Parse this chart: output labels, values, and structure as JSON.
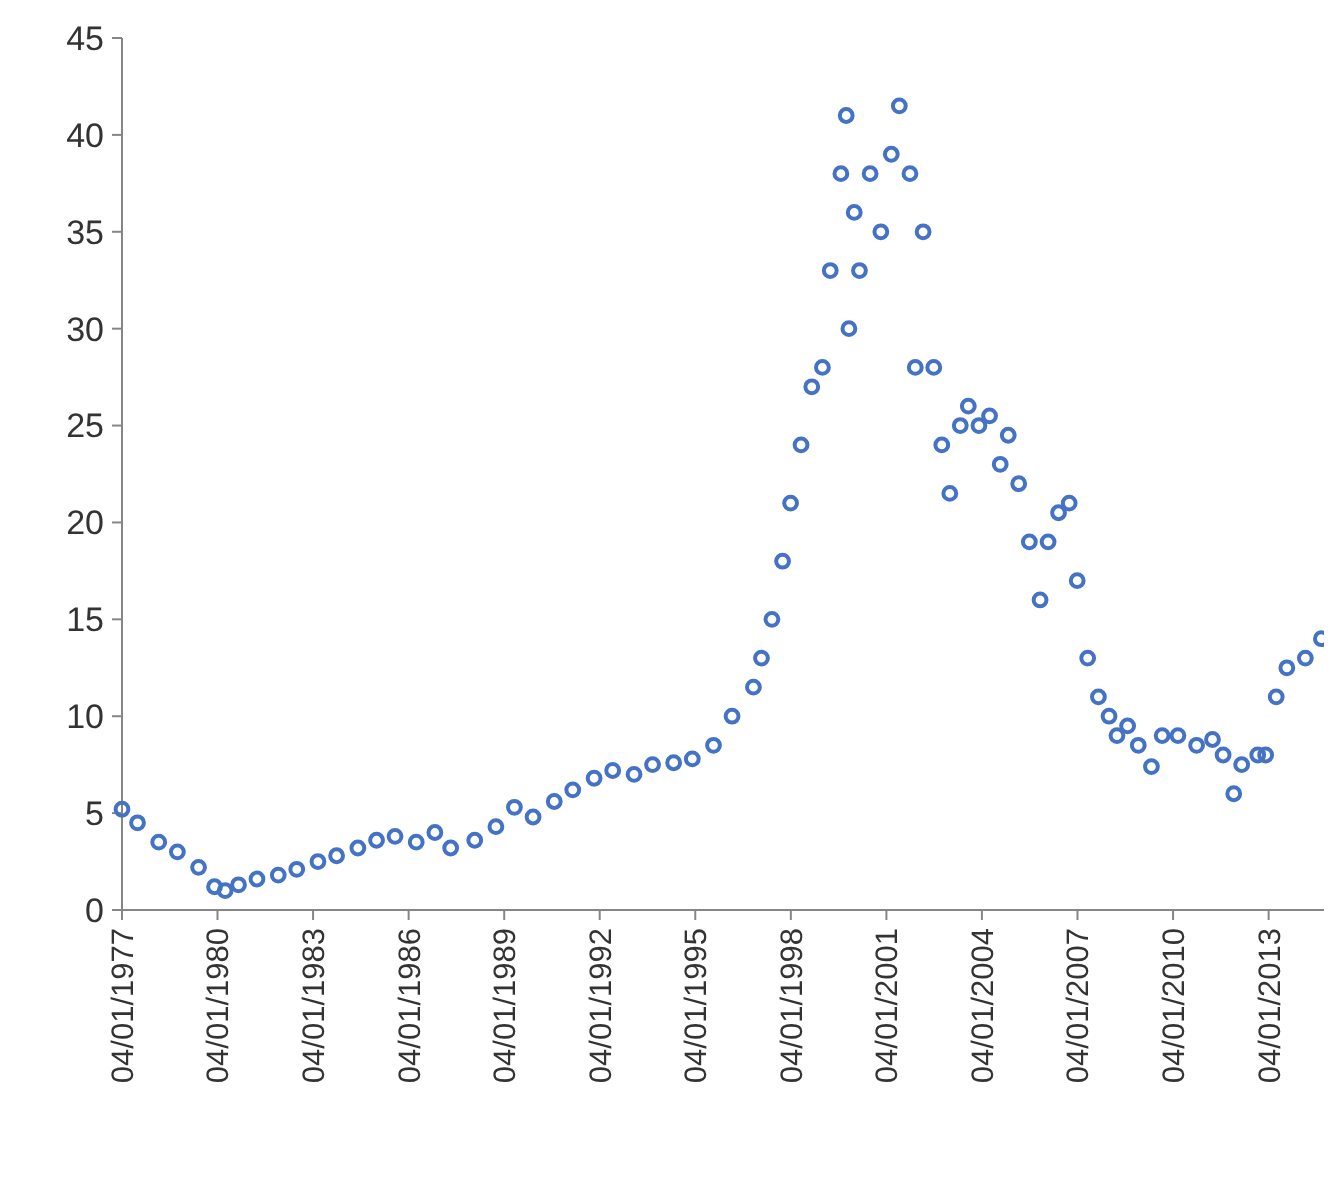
{
  "chart_data": {
    "type": "scatter",
    "marker": "circle",
    "grid": false,
    "xlim": [
      "1977-01-04",
      "2014-10-01"
    ],
    "xticks": [
      {
        "value": "1977-01-04",
        "label": "04/01/1977"
      },
      {
        "value": "1980-01-04",
        "label": "04/01/1980"
      },
      {
        "value": "1983-01-04",
        "label": "04/01/1983"
      },
      {
        "value": "1986-01-04",
        "label": "04/01/1986"
      },
      {
        "value": "1989-01-04",
        "label": "04/01/1989"
      },
      {
        "value": "1992-01-04",
        "label": "04/01/1992"
      },
      {
        "value": "1995-01-04",
        "label": "04/01/1995"
      },
      {
        "value": "1998-01-04",
        "label": "04/01/1998"
      },
      {
        "value": "2001-01-04",
        "label": "04/01/2001"
      },
      {
        "value": "2004-01-04",
        "label": "04/01/2004"
      },
      {
        "value": "2007-01-04",
        "label": "04/01/2007"
      },
      {
        "value": "2010-01-04",
        "label": "04/01/2010"
      },
      {
        "value": "2013-01-04",
        "label": "04/01/2013"
      }
    ],
    "ylim": [
      0,
      45
    ],
    "yticks": [
      0,
      5,
      10,
      15,
      20,
      25,
      30,
      35,
      40,
      45
    ],
    "series": [
      {
        "color": "#4472c4",
        "x": [
          "1977-01-04",
          "1977-07",
          "1978-03",
          "1978-10",
          "1979-06",
          "1979-12",
          "1980-04",
          "1980-09",
          "1981-04",
          "1981-12",
          "1982-07",
          "1983-03",
          "1983-10",
          "1984-06",
          "1985-01",
          "1985-08",
          "1986-04",
          "1986-11",
          "1987-05",
          "1988-02",
          "1988-10",
          "1989-05",
          "1989-12",
          "1990-08",
          "1991-03",
          "1991-11",
          "1992-06",
          "1993-02",
          "1993-09",
          "1994-05",
          "1994-12",
          "1995-08",
          "1996-03",
          "1996-11",
          "1997-02",
          "1997-06",
          "1997-10",
          "1998-01",
          "1998-05",
          "1998-09",
          "1999-01",
          "1999-04",
          "1999-08",
          "1999-10",
          "1999-11",
          "2000-01",
          "2000-03",
          "2000-07",
          "2000-11",
          "2001-03",
          "2001-06",
          "2001-10",
          "2001-12",
          "2002-03",
          "2002-07",
          "2002-10",
          "2003-01",
          "2003-05",
          "2003-08",
          "2003-12",
          "2004-04",
          "2004-08",
          "2004-11",
          "2005-03",
          "2005-07",
          "2005-11",
          "2006-02",
          "2006-06",
          "2006-10",
          "2007-01",
          "2007-05",
          "2007-09",
          "2008-01",
          "2008-04",
          "2008-08",
          "2008-12",
          "2009-05",
          "2009-09",
          "2010-03",
          "2010-10",
          "2011-04",
          "2011-08",
          "2011-12",
          "2012-03",
          "2012-09",
          "2012-12",
          "2013-04",
          "2013-08",
          "2014-03",
          "2014-09"
        ],
        "values": [
          5.2,
          4.5,
          3.5,
          3,
          2.2,
          1.2,
          1,
          1.3,
          1.6,
          1.8,
          2.1,
          2.5,
          2.8,
          3.2,
          3.6,
          3.8,
          3.5,
          4,
          3.2,
          3.6,
          4.3,
          5.3,
          4.8,
          5.6,
          6.2,
          6.8,
          7.2,
          7,
          7.5,
          7.6,
          7.8,
          8.5,
          10,
          11.5,
          13,
          15,
          18,
          21,
          24,
          27,
          28,
          33,
          38,
          41,
          30,
          36,
          33,
          38,
          35,
          39,
          41.5,
          38,
          28,
          35,
          28,
          24,
          21.5,
          25,
          26,
          25,
          25.5,
          23,
          24.5,
          22,
          19,
          16,
          19,
          20.5,
          21,
          17,
          13,
          11,
          10,
          9,
          9.5,
          8.5,
          7.4,
          9,
          9,
          8.5,
          8.8,
          8,
          6,
          7.5,
          8,
          8,
          11,
          12.5,
          13,
          14
        ]
      }
    ]
  }
}
